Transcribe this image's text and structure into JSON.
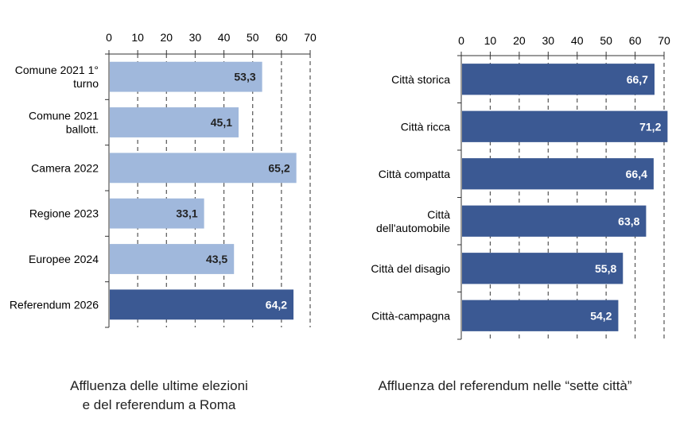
{
  "chart_data": [
    {
      "type": "bar",
      "orientation": "horizontal",
      "categories": [
        [
          "Comune 2021 1°",
          "turno"
        ],
        [
          "Comune 2021",
          "ballott."
        ],
        [
          "Camera 2022"
        ],
        [
          "Regione 2023"
        ],
        [
          "Europee 2024"
        ],
        [
          "Referendum 2026"
        ]
      ],
      "values": [
        53.3,
        45.1,
        65.2,
        33.1,
        43.5,
        64.2
      ],
      "value_labels": [
        "53,3",
        "45,1",
        "65,2",
        "33,1",
        "43,5",
        "64,2"
      ],
      "xlim": [
        0,
        70
      ],
      "ticks": [
        "0",
        "10",
        "20",
        "30",
        "40",
        "50",
        "60",
        "70"
      ],
      "grid": "dashed-vertical",
      "colors": [
        "#a0b8dc",
        "#a0b8dc",
        "#a0b8dc",
        "#a0b8dc",
        "#a0b8dc",
        "#3b5993"
      ],
      "value_label_colors": [
        "#222222",
        "#222222",
        "#222222",
        "#222222",
        "#222222",
        "#ffffff"
      ],
      "caption": [
        "Affluenza delle ultime elezioni",
        "e del referendum a Roma"
      ]
    },
    {
      "type": "bar",
      "orientation": "horizontal",
      "categories": [
        [
          "Città storica"
        ],
        [
          "Città ricca"
        ],
        [
          "Città compatta"
        ],
        [
          "Città",
          "dell'automobile"
        ],
        [
          "Città del disagio"
        ],
        [
          "Città-campagna"
        ]
      ],
      "values": [
        66.7,
        71.2,
        66.4,
        63.8,
        55.8,
        54.2
      ],
      "value_labels": [
        "66,7",
        "71,2",
        "66,4",
        "63,8",
        "55,8",
        "54,2"
      ],
      "xlim": [
        0,
        70
      ],
      "ticks": [
        "0",
        "10",
        "20",
        "30",
        "40",
        "50",
        "60",
        "70"
      ],
      "grid": "dashed-vertical",
      "colors": [
        "#3b5993",
        "#3b5993",
        "#3b5993",
        "#3b5993",
        "#3b5993",
        "#3b5993"
      ],
      "value_label_colors": [
        "#ffffff",
        "#ffffff",
        "#ffffff",
        "#ffffff",
        "#ffffff",
        "#ffffff"
      ],
      "caption": [
        "Affluenza del referendum nelle “sette città”"
      ]
    }
  ]
}
